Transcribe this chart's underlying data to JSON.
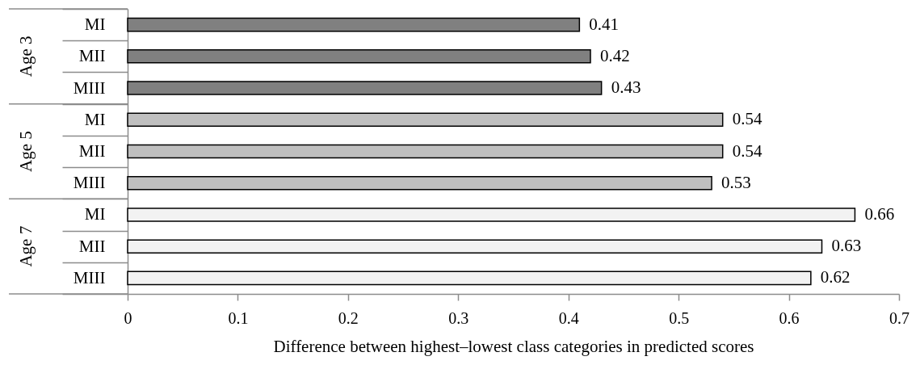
{
  "chart_data": {
    "type": "bar",
    "orientation": "horizontal",
    "xlabel": "Difference between highest–lowest class categories in predicted scores",
    "categories": [
      "MI",
      "MII",
      "MIII",
      "MI",
      "MII",
      "MIII",
      "MI",
      "MII",
      "MIII"
    ],
    "series": [
      {
        "color": "#808080",
        "values": [
          0.41,
          0.42,
          0.43,
          null,
          null,
          null,
          null,
          null,
          null
        ]
      },
      {
        "color": "#bfbfbf",
        "values": [
          null,
          null,
          null,
          0.54,
          0.54,
          0.53,
          null,
          null,
          null
        ]
      },
      {
        "color": "#f2f2f2",
        "values": [
          null,
          null,
          null,
          null,
          null,
          null,
          0.66,
          0.63,
          0.62
        ]
      }
    ],
    "xlim": [
      0,
      0.7
    ],
    "xticks": [
      0,
      0.1,
      0.2,
      0.3,
      0.4,
      0.5,
      0.6,
      0.7
    ],
    "data_labels": true,
    "annotations": [
      "Age 3",
      "Age 5",
      "Age 7"
    ],
    "grid": false
  }
}
